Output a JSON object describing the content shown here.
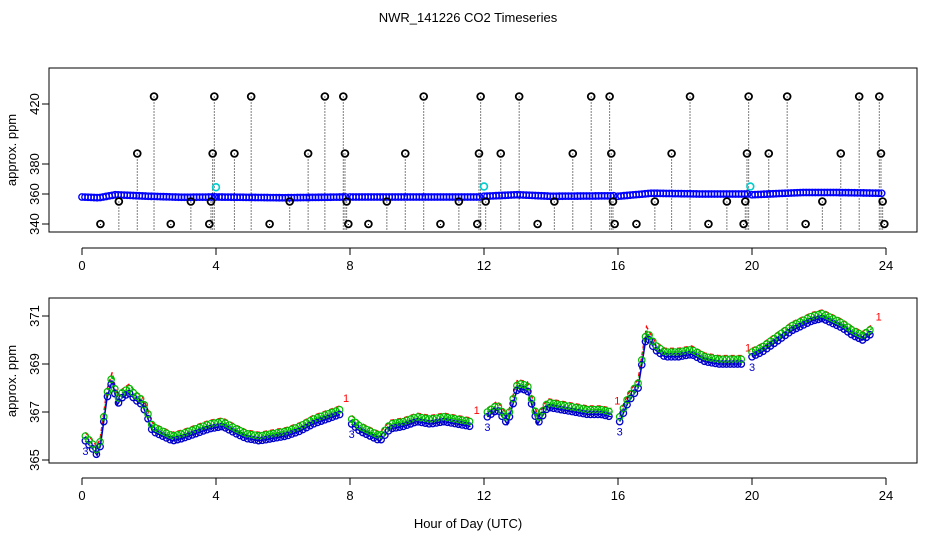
{
  "title": "NWR_141226  CO2 Timeseries",
  "xlabel": "Hour of Day (UTC)",
  "colors": {
    "series1": "#ff0000",
    "series2": "#00bb00",
    "series3": "#0000cc",
    "point": "#0000ff",
    "flagged": "#000000",
    "highlight": "#00cccc"
  },
  "chart_data": [
    {
      "type": "scatter",
      "name": "top-panel",
      "ylabel": "approx. ppm",
      "xlim": [
        0,
        24
      ],
      "ylim": [
        340,
        426
      ],
      "xticks": [
        0,
        4,
        8,
        12,
        16,
        20,
        24
      ],
      "yticks": [
        340,
        360,
        380,
        420
      ],
      "flag_baseline": 336,
      "flagged_points": [
        {
          "x": 0.55,
          "y": 340
        },
        {
          "x": 1.1,
          "y": 355
        },
        {
          "x": 1.65,
          "y": 387
        },
        {
          "x": 2.15,
          "y": 425
        },
        {
          "x": 2.65,
          "y": 340
        },
        {
          "x": 3.25,
          "y": 355
        },
        {
          "x": 3.8,
          "y": 340
        },
        {
          "x": 3.85,
          "y": 355
        },
        {
          "x": 3.9,
          "y": 387
        },
        {
          "x": 3.95,
          "y": 425
        },
        {
          "x": 4.55,
          "y": 387
        },
        {
          "x": 5.05,
          "y": 425
        },
        {
          "x": 5.6,
          "y": 340
        },
        {
          "x": 6.2,
          "y": 355
        },
        {
          "x": 6.75,
          "y": 387
        },
        {
          "x": 7.25,
          "y": 425
        },
        {
          "x": 7.8,
          "y": 425
        },
        {
          "x": 7.85,
          "y": 387
        },
        {
          "x": 7.9,
          "y": 355
        },
        {
          "x": 7.95,
          "y": 340
        },
        {
          "x": 8.55,
          "y": 340
        },
        {
          "x": 9.1,
          "y": 355
        },
        {
          "x": 9.65,
          "y": 387
        },
        {
          "x": 10.2,
          "y": 425
        },
        {
          "x": 10.7,
          "y": 340
        },
        {
          "x": 11.25,
          "y": 355
        },
        {
          "x": 11.8,
          "y": 340
        },
        {
          "x": 11.85,
          "y": 387
        },
        {
          "x": 11.9,
          "y": 425
        },
        {
          "x": 12.05,
          "y": 355
        },
        {
          "x": 12.5,
          "y": 387
        },
        {
          "x": 13.05,
          "y": 425
        },
        {
          "x": 13.6,
          "y": 340
        },
        {
          "x": 14.1,
          "y": 355
        },
        {
          "x": 14.65,
          "y": 387
        },
        {
          "x": 15.2,
          "y": 425
        },
        {
          "x": 15.75,
          "y": 425
        },
        {
          "x": 15.8,
          "y": 387
        },
        {
          "x": 15.85,
          "y": 355
        },
        {
          "x": 15.9,
          "y": 340
        },
        {
          "x": 16.55,
          "y": 340
        },
        {
          "x": 17.1,
          "y": 355
        },
        {
          "x": 17.6,
          "y": 387
        },
        {
          "x": 18.15,
          "y": 425
        },
        {
          "x": 18.7,
          "y": 340
        },
        {
          "x": 19.25,
          "y": 355
        },
        {
          "x": 19.75,
          "y": 340
        },
        {
          "x": 19.8,
          "y": 355
        },
        {
          "x": 19.85,
          "y": 387
        },
        {
          "x": 19.9,
          "y": 425
        },
        {
          "x": 20.5,
          "y": 387
        },
        {
          "x": 21.05,
          "y": 425
        },
        {
          "x": 21.6,
          "y": 340
        },
        {
          "x": 22.1,
          "y": 355
        },
        {
          "x": 22.65,
          "y": 387
        },
        {
          "x": 23.2,
          "y": 425
        },
        {
          "x": 23.8,
          "y": 425
        },
        {
          "x": 23.85,
          "y": 387
        },
        {
          "x": 23.9,
          "y": 355
        },
        {
          "x": 23.95,
          "y": 340
        }
      ],
      "highlight_points": [
        {
          "x": 4.0,
          "y": 364.5
        },
        {
          "x": 12.0,
          "y": 365
        },
        {
          "x": 19.95,
          "y": 365
        }
      ],
      "baseline_segments": [
        {
          "x": [
            0.0,
            0.5,
            1.0,
            2.0,
            3.0,
            4.0
          ],
          "y": [
            358,
            357.5,
            359.5,
            358.5,
            357.8,
            358
          ]
        },
        {
          "x": [
            4.0,
            6.0,
            7.9
          ],
          "y": [
            358,
            357.5,
            358
          ]
        },
        {
          "x": [
            8.0,
            10.0,
            11.9
          ],
          "y": [
            358,
            358,
            358
          ]
        },
        {
          "x": [
            12.0,
            13.0,
            14.0,
            15.95
          ],
          "y": [
            358.5,
            359.5,
            358.5,
            358.8
          ]
        },
        {
          "x": [
            16.0,
            17.0,
            18.5,
            19.9
          ],
          "y": [
            358.5,
            360.5,
            360,
            360
          ]
        },
        {
          "x": [
            20.0,
            21.5,
            22.5,
            23.9
          ],
          "y": [
            359.5,
            361,
            361,
            360.5
          ]
        }
      ]
    },
    {
      "type": "line",
      "name": "bottom-panel",
      "ylabel": "approx. ppm",
      "xlim": [
        0,
        24
      ],
      "ylim": [
        365,
        371.3
      ],
      "xticks": [
        0,
        4,
        8,
        12,
        16,
        20,
        24
      ],
      "yticks": [
        365,
        367,
        369,
        371
      ],
      "series": [
        {
          "name": "1",
          "offset": 0.35
        },
        {
          "name": "2",
          "offset": 0.2
        },
        {
          "name": "3",
          "offset": 0.0
        }
      ],
      "segments": [
        {
          "x": [
            0.1,
            0.3,
            0.45,
            0.55,
            0.75,
            0.9,
            1.05,
            1.2,
            1.4,
            1.6,
            1.8,
            1.95,
            2.1,
            2.4,
            2.7,
            3.0,
            3.4,
            3.8,
            4.2,
            4.6,
            4.9,
            5.3,
            5.7,
            6.1,
            6.5,
            6.9,
            7.3,
            7.7
          ],
          "y": [
            365.8,
            365.5,
            365.2,
            365.6,
            367.6,
            368.3,
            367.3,
            367.6,
            367.8,
            367.5,
            367.3,
            366.8,
            366.2,
            366.0,
            365.8,
            365.9,
            366.1,
            366.3,
            366.4,
            366.1,
            365.9,
            365.8,
            365.9,
            366.0,
            366.2,
            366.5,
            366.7,
            366.9
          ]
        },
        {
          "x": [
            8.05,
            8.3,
            8.6,
            8.9,
            9.2,
            9.6,
            10.0,
            10.4,
            10.8,
            11.2,
            11.6
          ],
          "y": [
            366.5,
            366.2,
            366.0,
            365.8,
            366.3,
            366.4,
            366.6,
            366.5,
            366.6,
            366.5,
            366.4
          ]
        },
        {
          "x": [
            12.1,
            12.4,
            12.7,
            13.0,
            13.3,
            13.6,
            13.9,
            14.3,
            14.7,
            15.1,
            15.5,
            15.8
          ],
          "y": [
            366.8,
            367.1,
            366.5,
            368.0,
            367.9,
            366.5,
            367.2,
            367.1,
            367.0,
            366.9,
            366.9,
            366.8
          ]
        },
        {
          "x": [
            16.05,
            16.3,
            16.6,
            16.85,
            17.1,
            17.4,
            17.8,
            18.2,
            18.6,
            19.0,
            19.4,
            19.7
          ],
          "y": [
            366.6,
            367.4,
            368.0,
            370.2,
            369.6,
            369.3,
            369.3,
            369.4,
            369.1,
            369.0,
            369.0,
            369.0
          ]
        },
        {
          "x": [
            20.0,
            20.3,
            20.6,
            20.9,
            21.2,
            21.5,
            21.8,
            22.1,
            22.4,
            22.7,
            23.0,
            23.3,
            23.6
          ],
          "y": [
            369.3,
            369.5,
            369.8,
            370.1,
            370.4,
            370.6,
            370.8,
            370.9,
            370.7,
            370.5,
            370.2,
            370.0,
            370.3
          ]
        }
      ]
    }
  ]
}
